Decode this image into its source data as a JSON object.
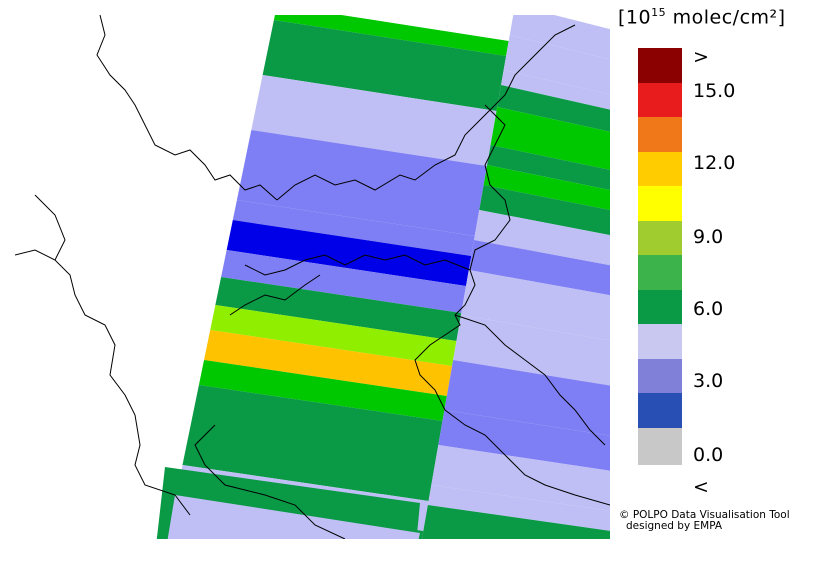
{
  "unit_label": {
    "prefix": "[10",
    "exponent": "15",
    "suffix": " molec/cm²]"
  },
  "legend": {
    "swatches": [
      {
        "color": "#8b0000"
      },
      {
        "color": "#e81c1c"
      },
      {
        "color": "#f07818"
      },
      {
        "color": "#ffcc00"
      },
      {
        "color": "#ffff00"
      },
      {
        "color": "#a0cc30"
      },
      {
        "color": "#3cb44b"
      },
      {
        "color": "#0a9944"
      },
      {
        "color": "#c8c8f0"
      },
      {
        "color": "#8080d8"
      },
      {
        "color": "#2850b4"
      },
      {
        "color": "#c8c8c8"
      }
    ],
    "labels": [
      ">",
      "15.0",
      "12.0",
      "9.0",
      "6.0",
      "3.0",
      "0.0",
      "<"
    ]
  },
  "credit": {
    "line1": "© POLPO Data Visualisation Tool",
    "line2": "designed by EMPA"
  },
  "palette": {
    "below_zero": "#c8c8c8",
    "range_0_1_5": "#2850b4",
    "range_1_5_3": "#7f7ff5",
    "range_3_4_5": "#bfbff5",
    "range_4_5_6": "#0a9944",
    "range_6_7_5": "#00c800",
    "range_7_5_9": "#90ee00",
    "range_10_5_12": "#ffc200",
    "blue_strong": "#0000e8"
  }
}
